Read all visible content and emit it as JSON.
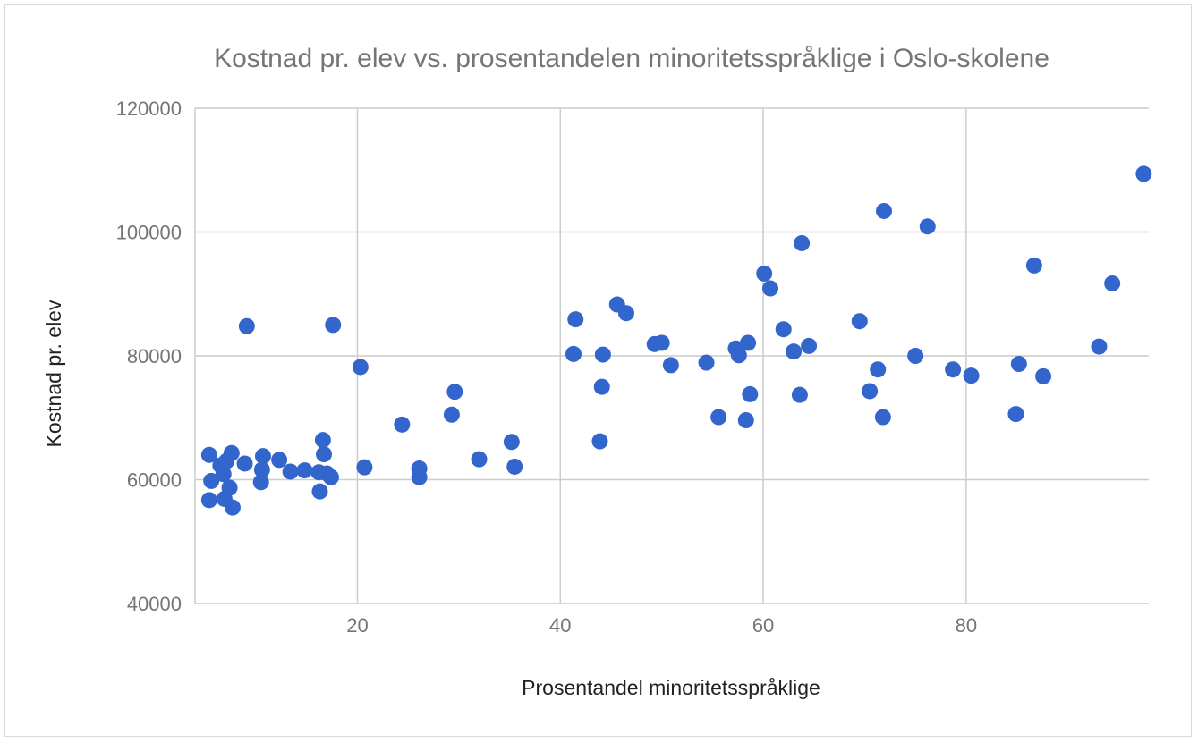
{
  "chart_data": {
    "type": "scatter",
    "title": "Kostnad pr. elev vs. prosentandelen minoritetsspråklige i Oslo-skolene",
    "xlabel": "Prosentandel minoritetsspråklige",
    "ylabel": "Kostnad pr. elev",
    "xlim": [
      4,
      98
    ],
    "ylim": [
      40000,
      120000
    ],
    "x_ticks": [
      20,
      40,
      60,
      80
    ],
    "x_tick_labels": [
      "20",
      "40",
      "60",
      "80"
    ],
    "y_ticks": [
      40000,
      60000,
      80000,
      100000,
      120000
    ],
    "y_tick_labels": [
      "40000",
      "60000",
      "80000",
      "100000",
      "120000"
    ],
    "grid": true,
    "legend": "none",
    "marker_color": "#3366cc",
    "points": [
      {
        "x": 5.4,
        "y": 64000
      },
      {
        "x": 5.4,
        "y": 56700
      },
      {
        "x": 5.6,
        "y": 59800
      },
      {
        "x": 6.5,
        "y": 62300
      },
      {
        "x": 6.8,
        "y": 60900
      },
      {
        "x": 6.9,
        "y": 56900
      },
      {
        "x": 7.1,
        "y": 63000
      },
      {
        "x": 7.4,
        "y": 58700
      },
      {
        "x": 7.6,
        "y": 64300
      },
      {
        "x": 7.7,
        "y": 55500
      },
      {
        "x": 8.9,
        "y": 62600
      },
      {
        "x": 9.1,
        "y": 84800
      },
      {
        "x": 10.5,
        "y": 59600
      },
      {
        "x": 10.6,
        "y": 61600
      },
      {
        "x": 10.7,
        "y": 63800
      },
      {
        "x": 12.3,
        "y": 63200
      },
      {
        "x": 13.4,
        "y": 61300
      },
      {
        "x": 14.8,
        "y": 61500
      },
      {
        "x": 16.2,
        "y": 61200
      },
      {
        "x": 16.3,
        "y": 58100
      },
      {
        "x": 16.6,
        "y": 66400
      },
      {
        "x": 16.7,
        "y": 64100
      },
      {
        "x": 17.0,
        "y": 61000
      },
      {
        "x": 17.4,
        "y": 60400
      },
      {
        "x": 17.6,
        "y": 85000
      },
      {
        "x": 20.3,
        "y": 78200
      },
      {
        "x": 20.7,
        "y": 62000
      },
      {
        "x": 24.4,
        "y": 68900
      },
      {
        "x": 26.1,
        "y": 61800
      },
      {
        "x": 26.1,
        "y": 60400
      },
      {
        "x": 29.3,
        "y": 70500
      },
      {
        "x": 29.6,
        "y": 74200
      },
      {
        "x": 32.0,
        "y": 63300
      },
      {
        "x": 35.2,
        "y": 66100
      },
      {
        "x": 35.5,
        "y": 62100
      },
      {
        "x": 41.3,
        "y": 80300
      },
      {
        "x": 41.5,
        "y": 85900
      },
      {
        "x": 43.9,
        "y": 66200
      },
      {
        "x": 44.1,
        "y": 75000
      },
      {
        "x": 44.2,
        "y": 80200
      },
      {
        "x": 45.6,
        "y": 88300
      },
      {
        "x": 46.5,
        "y": 86900
      },
      {
        "x": 49.3,
        "y": 81900
      },
      {
        "x": 50.0,
        "y": 82100
      },
      {
        "x": 50.9,
        "y": 78500
      },
      {
        "x": 54.4,
        "y": 78900
      },
      {
        "x": 55.6,
        "y": 70100
      },
      {
        "x": 57.3,
        "y": 81200
      },
      {
        "x": 57.6,
        "y": 80100
      },
      {
        "x": 58.3,
        "y": 69600
      },
      {
        "x": 58.5,
        "y": 82100
      },
      {
        "x": 58.7,
        "y": 73800
      },
      {
        "x": 60.1,
        "y": 93300
      },
      {
        "x": 60.7,
        "y": 90900
      },
      {
        "x": 62.0,
        "y": 84300
      },
      {
        "x": 63.0,
        "y": 80700
      },
      {
        "x": 63.6,
        "y": 73700
      },
      {
        "x": 63.8,
        "y": 98200
      },
      {
        "x": 64.5,
        "y": 81600
      },
      {
        "x": 69.5,
        "y": 85600
      },
      {
        "x": 70.5,
        "y": 74300
      },
      {
        "x": 71.3,
        "y": 77800
      },
      {
        "x": 71.8,
        "y": 70100
      },
      {
        "x": 71.9,
        "y": 103400
      },
      {
        "x": 75.0,
        "y": 80000
      },
      {
        "x": 76.2,
        "y": 100900
      },
      {
        "x": 78.7,
        "y": 77800
      },
      {
        "x": 80.5,
        "y": 76800
      },
      {
        "x": 84.9,
        "y": 70600
      },
      {
        "x": 85.2,
        "y": 78700
      },
      {
        "x": 86.7,
        "y": 94600
      },
      {
        "x": 87.6,
        "y": 76700
      },
      {
        "x": 93.1,
        "y": 81500
      },
      {
        "x": 94.4,
        "y": 91700
      },
      {
        "x": 97.5,
        "y": 109400
      }
    ]
  }
}
